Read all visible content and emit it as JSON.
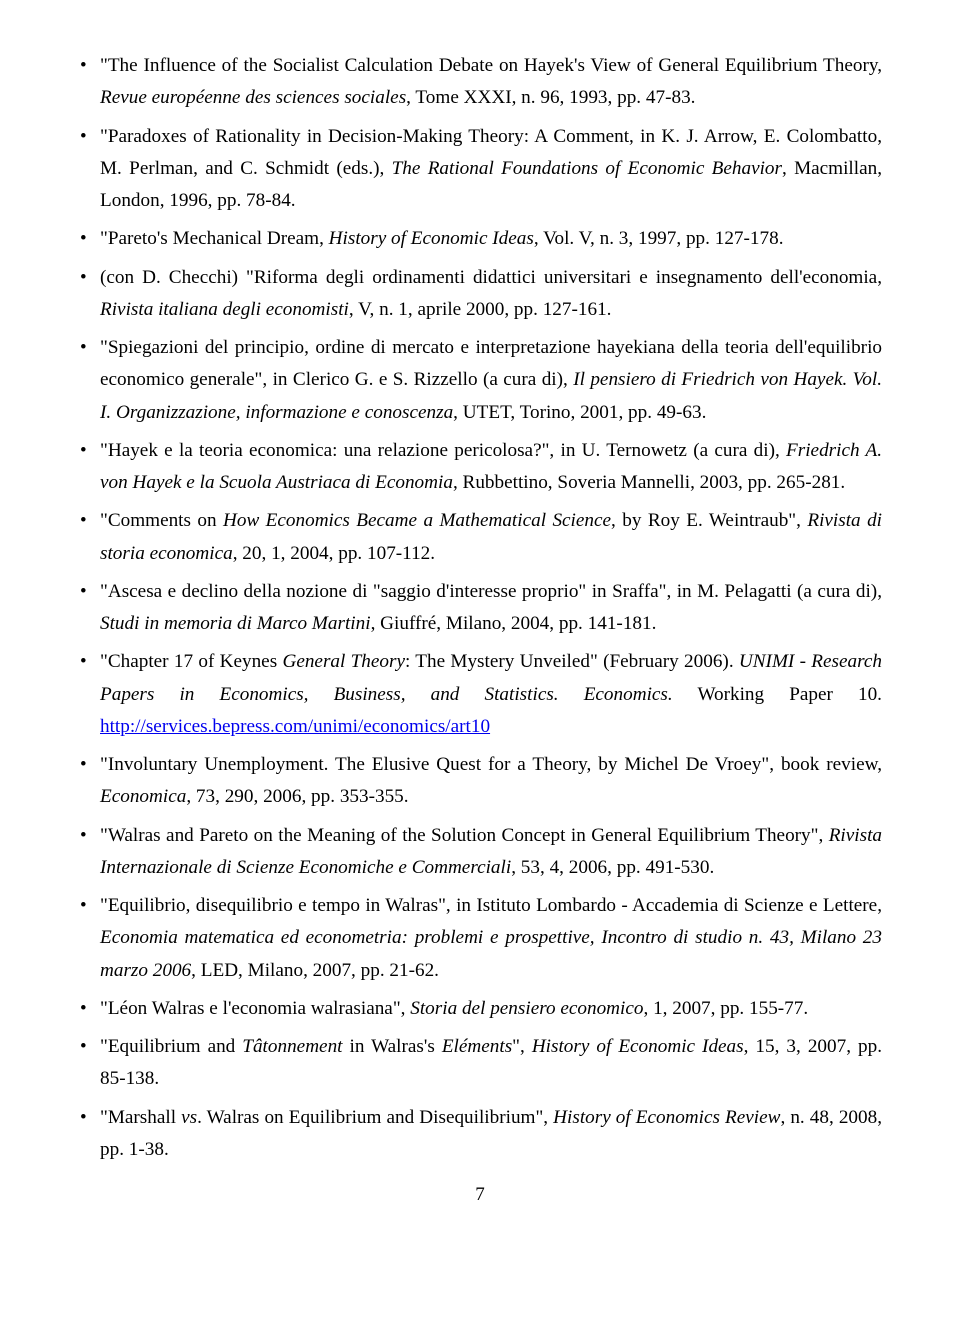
{
  "page_number": "7",
  "link_url": "http://services.bepress.com/unimi/economics/art10",
  "entries": [
    {
      "pre": "\"The Influence of the Socialist Calculation Debate on Hayek's View of General Equilibrium Theory, ",
      "ital1": "Revue européenne des sciences sociales",
      "post": ", Tome XXXI, n. 96, 1993, pp. 47-83."
    },
    {
      "pre": "\"Paradoxes of Rationality in Decision-Making Theory: A Comment, in K. J. Arrow, E. Colombatto, M. Perlman, and C. Schmidt (eds.), ",
      "ital1": "The Rational Foundations of Economic Behavior",
      "post": ", Macmillan, London, 1996, pp. 78-84."
    },
    {
      "pre": "\"Pareto's Mechanical Dream, ",
      "ital1": "History of Economic Ideas",
      "post": ", Vol. V, n. 3, 1997, pp. 127-178."
    },
    {
      "pre": "(con D. Checchi) \"Riforma degli ordinamenti didattici universitari e insegnamento dell'economia, ",
      "ital1": "Rivista italiana degli economisti",
      "post": ", V, n. 1, aprile 2000, pp. 127-161."
    },
    {
      "pre": "\"Spiegazioni del principio, ordine di mercato e interpretazione hayekiana della teoria dell'equilibrio economico generale\", in Clerico G. e S. Rizzello (a cura di), ",
      "ital1": "Il pensiero di Friedrich von Hayek. Vol. I. Organizzazione, informazione e conoscenza",
      "post": ", UTET, Torino, 2001, pp. 49-63."
    },
    {
      "pre": "\"Hayek e la teoria economica: una relazione pericolosa?\", in U. Ternowetz (a cura di), ",
      "ital1": "Friedrich A. von Hayek e la Scuola Austriaca di Economia",
      "post": ", Rubbettino, Soveria Mannelli, 2003, pp. 265-281."
    },
    {
      "pre": "\"Comments on ",
      "ital1": "How Economics Became a Mathematical Science",
      "mid": ", by Roy E. Weintraub\", ",
      "ital2": "Rivista di storia economica",
      "post": ", 20, 1, 2004, pp. 107-112."
    },
    {
      "pre": "\"Ascesa e declino della nozione di \"saggio d'interesse proprio\" in Sraffa\", in M. Pelagatti (a cura di), ",
      "ital1": "Studi in memoria di Marco Martini",
      "post": ", Giuffré, Milano, 2004, pp. 141-181."
    },
    {
      "pre": "\"Chapter 17 of Keynes ",
      "ital1": "General Theory",
      "mid": ": The Mystery Unveiled\" (February 2006). ",
      "ital2": "UNIMI - Research Papers in Economics, Business, and Statistics. Economics.",
      "post": " Working Paper 10. ",
      "has_link": true
    },
    {
      "pre": " \"Involuntary Unemployment. The Elusive Quest for a Theory, by Michel De Vroey\", book review, ",
      "ital1": "Economica",
      "post": ", 73, 290, 2006, pp. 353-355."
    },
    {
      "pre": " \"Walras and Pareto on the Meaning of the Solution Concept in General Equilibrium Theory\", ",
      "ital1": "Rivista Internazionale di Scienze Economiche e Commerciali",
      "post": ", 53, 4, 2006, pp. 491-530."
    },
    {
      "pre": "\"Equilibrio, disequilibrio e tempo in Walras\", in Istituto Lombardo - Accademia di Scienze e Lettere, ",
      "ital1": "Economia matematica ed econometria: problemi e prospettive, Incontro di studio n. 43, Milano 23 marzo 2006",
      "post": ", LED, Milano, 2007, pp. 21-62."
    },
    {
      "pre": "\"Léon Walras e l'economia walrasiana\", ",
      "ital1": "Storia del pensiero economico",
      "post": ", 1, 2007, pp. 155-77."
    },
    {
      "pre": "\"Equilibrium and ",
      "ital1": "Tâtonnement",
      "mid": " in Walras's ",
      "ital2": "Eléments",
      "mid2": "\", ",
      "ital3": "History of Economic Ideas",
      "post": ", 15, 3, 2007, pp. 85-138."
    },
    {
      "pre": "\"Marshall ",
      "ital1": "vs",
      "mid": ". Walras on Equilibrium and Disequilibrium\", ",
      "ital2": "History of Economics Review",
      "post": ", n. 48, 2008, pp. 1-38."
    }
  ]
}
